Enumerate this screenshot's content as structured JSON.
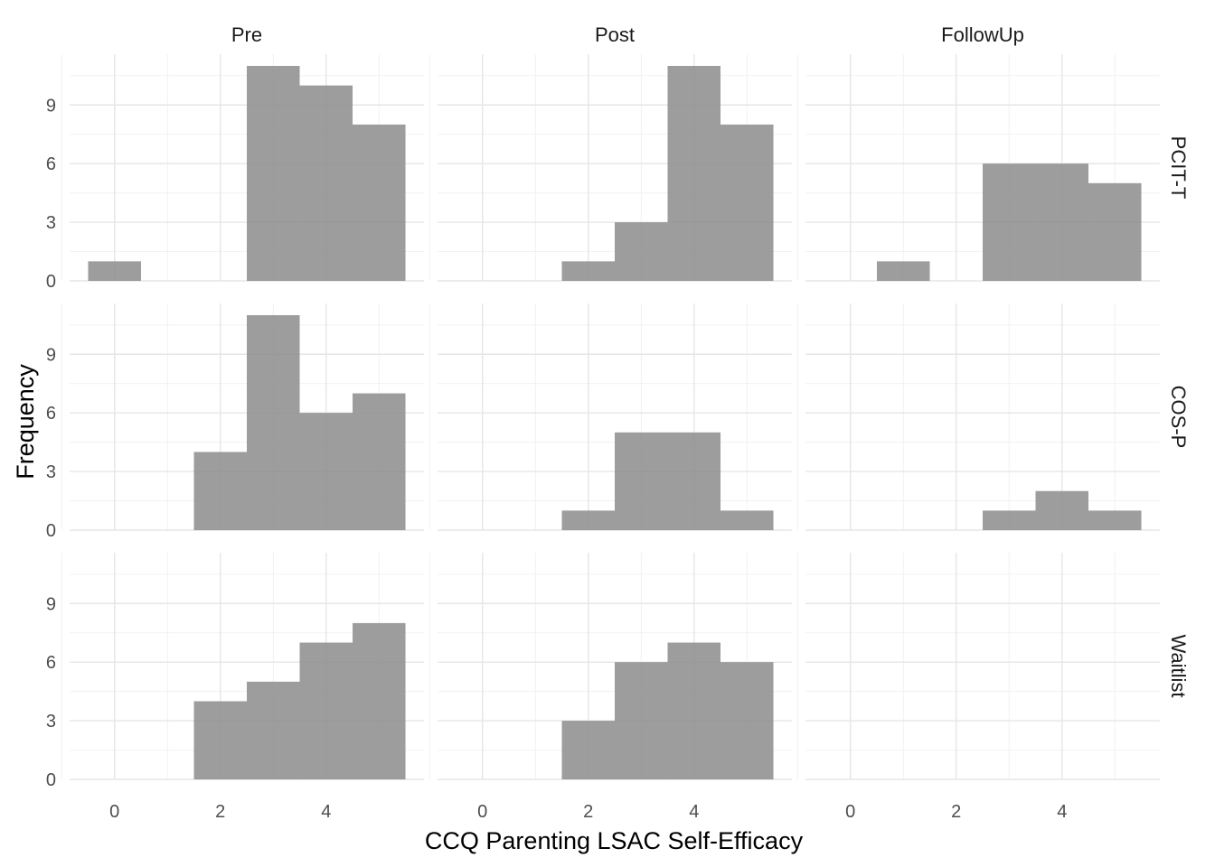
{
  "chart_data": {
    "type": "bar",
    "subtype": "faceted-histogram",
    "xlabel": "CCQ Parenting LSAC Self-Efficacy",
    "ylabel": "Frequency",
    "xlim": [
      -0.85,
      5.85
    ],
    "ylim": [
      0,
      11.6
    ],
    "x_ticks": [
      0,
      2,
      4
    ],
    "y_ticks": [
      0,
      3,
      6,
      9
    ],
    "grid": true,
    "bar_color": "#8c8c8c",
    "bins": [
      0,
      1,
      2,
      3,
      4,
      5
    ],
    "bin_width": 1,
    "columns": [
      "Pre",
      "Post",
      "FollowUp"
    ],
    "rows": [
      "PCIT-T",
      "COS-P",
      "Waitlist"
    ],
    "panels": [
      {
        "row": "PCIT-T",
        "col": "Pre",
        "counts": [
          1,
          0,
          0,
          11,
          10,
          8
        ]
      },
      {
        "row": "PCIT-T",
        "col": "Post",
        "counts": [
          0,
          0,
          1,
          3,
          11,
          8
        ]
      },
      {
        "row": "PCIT-T",
        "col": "FollowUp",
        "counts": [
          0,
          1,
          0,
          6,
          6,
          5
        ]
      },
      {
        "row": "COS-P",
        "col": "Pre",
        "counts": [
          0,
          0,
          4,
          11,
          6,
          7
        ]
      },
      {
        "row": "COS-P",
        "col": "Post",
        "counts": [
          0,
          0,
          1,
          5,
          5,
          1
        ]
      },
      {
        "row": "COS-P",
        "col": "FollowUp",
        "counts": [
          0,
          0,
          0,
          1,
          2,
          1
        ]
      },
      {
        "row": "Waitlist",
        "col": "Pre",
        "counts": [
          0,
          0,
          4,
          5,
          7,
          8
        ]
      },
      {
        "row": "Waitlist",
        "col": "Post",
        "counts": [
          0,
          0,
          3,
          6,
          7,
          6
        ]
      },
      {
        "row": "Waitlist",
        "col": "FollowUp",
        "counts": [
          0,
          0,
          0,
          0,
          0,
          0
        ]
      }
    ]
  }
}
